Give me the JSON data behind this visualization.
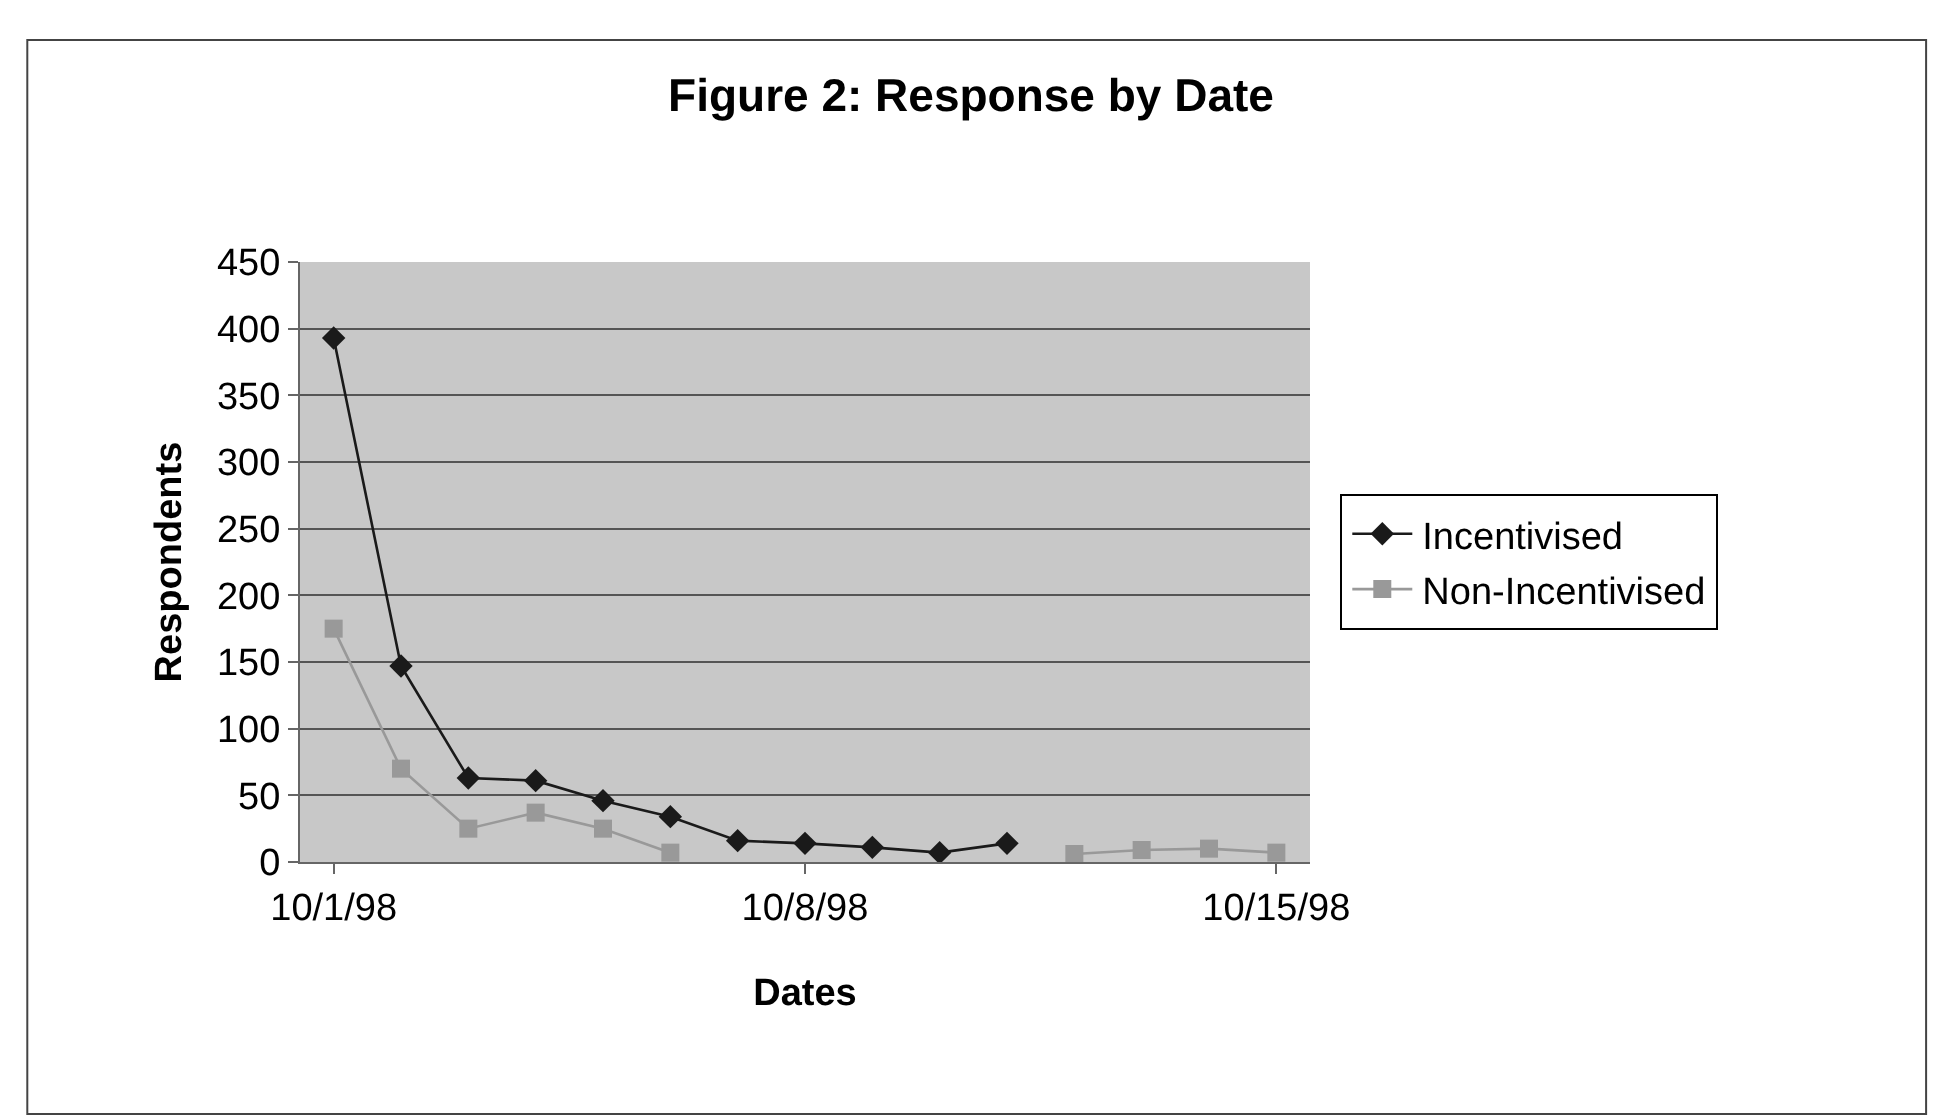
{
  "chart_data": {
    "type": "line",
    "title": "Figure 2: Response by Date",
    "xlabel": "Dates",
    "ylabel": "Respondents",
    "categories": [
      "10/1/98",
      null,
      null,
      null,
      null,
      null,
      null,
      "10/8/98",
      null,
      null,
      null,
      null,
      null,
      null,
      "10/15/98"
    ],
    "series": [
      {
        "name": "Incentivised",
        "color": "#1a1a1a",
        "marker": "diamond",
        "values": [
          393,
          147,
          63,
          61,
          46,
          34,
          16,
          14,
          11,
          7,
          14,
          null,
          null,
          null,
          null
        ]
      },
      {
        "name": "Non-Incentivised",
        "color": "#999999",
        "marker": "square",
        "values": [
          175,
          70,
          25,
          37,
          25,
          7,
          null,
          null,
          null,
          null,
          null,
          6,
          9,
          10,
          7
        ]
      }
    ],
    "ylim": [
      0,
      450
    ],
    "yticks": [
      0,
      50,
      100,
      150,
      200,
      250,
      300,
      350,
      400,
      450
    ],
    "grid": "y",
    "legend": "right",
    "line_style": "solid"
  }
}
